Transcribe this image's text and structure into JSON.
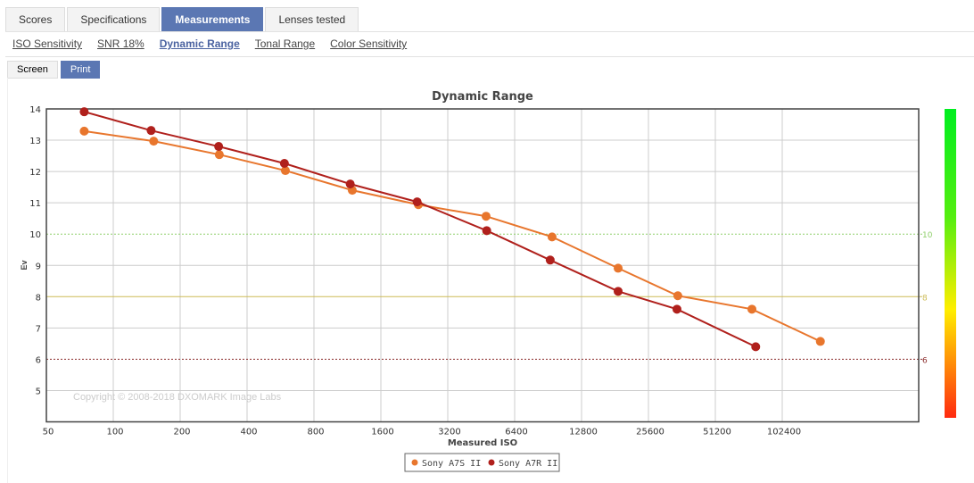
{
  "tabs": [
    "Scores",
    "Specifications",
    "Measurements",
    "Lenses tested"
  ],
  "active_tab": "Measurements",
  "subtabs": [
    "ISO Sensitivity",
    "SNR 18%",
    "Dynamic Range",
    "Tonal Range",
    "Color Sensitivity"
  ],
  "modes": [
    "Screen",
    "Print"
  ],
  "chart_data": {
    "type": "line",
    "title": "Dynamic Range",
    "xlabel": "Measured ISO",
    "ylabel": "Ev",
    "xscale": "log2",
    "xlim": [
      50,
      204800
    ],
    "ylim": [
      4,
      14
    ],
    "xticks": [
      "50",
      "100",
      "200",
      "400",
      "800",
      "1600",
      "3200",
      "6400",
      "12800",
      "25600",
      "51200",
      "102400"
    ],
    "yticks": [
      "5",
      "6",
      "7",
      "8",
      "9",
      "10",
      "11",
      "12",
      "13",
      "14"
    ],
    "reference_lines": [
      {
        "value": 10,
        "label": "10",
        "color": "#8fcf6a"
      },
      {
        "value": 8,
        "label": "8",
        "color": "#cdbb55"
      },
      {
        "value": 6,
        "label": "6",
        "color": "#8b2b2b"
      }
    ],
    "watermark": "Copyright © 2008-2018 DXOMARK Image Labs",
    "legend_position": "bottom-center",
    "series": [
      {
        "name": "Sony A7S II",
        "color": "#e8762d",
        "x": [
          74,
          152,
          300,
          595,
          1190,
          2360,
          4760,
          9430,
          18700,
          34700,
          74800,
          152000
        ],
        "y": [
          13.29,
          12.97,
          12.54,
          12.03,
          11.4,
          10.94,
          10.57,
          9.91,
          8.91,
          8.03,
          7.6,
          6.57
        ]
      },
      {
        "name": "Sony A7R II",
        "color": "#b0201c",
        "x": [
          74,
          148,
          298,
          589,
          1165,
          2330,
          4790,
          9250,
          18700,
          34400,
          77800
        ],
        "y": [
          13.91,
          13.31,
          12.8,
          12.26,
          11.6,
          11.03,
          10.11,
          9.17,
          8.17,
          7.6,
          6.4
        ]
      }
    ]
  }
}
